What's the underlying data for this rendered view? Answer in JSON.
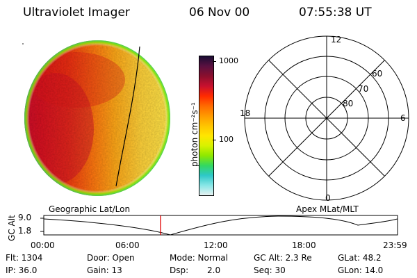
{
  "header": {
    "instrument": "Ultraviolet Imager",
    "date": "06 Nov 00",
    "time": "07:55:38 UT"
  },
  "colorbar": {
    "unit_label": "photon cm⁻²s⁻¹",
    "scale": "log",
    "tick_labels": [
      "1000",
      "100"
    ],
    "colors": [
      "#1a0d33",
      "#5a1040",
      "#8b0f2d",
      "#c8102e",
      "#ff2a00",
      "#ff6a00",
      "#ff9a00",
      "#ffc400",
      "#ffe600",
      "#d8f200",
      "#8ee800",
      "#33d860",
      "#2ec8c8",
      "#88e6e6",
      "#e8f2f2"
    ]
  },
  "polar_grid": {
    "mlt_labels": {
      "top": "12",
      "right": "6",
      "bottom": "0",
      "left": "18"
    },
    "lat_labels": [
      "60",
      "70",
      "80"
    ]
  },
  "timeline": {
    "left_title": "Geographic Lat/Lon",
    "right_title": "Apex MLat/MLT",
    "y_label": "GC Alt",
    "y_ticks": [
      "9.0",
      "1.8"
    ],
    "x_ticks": [
      "00:00",
      "06:00",
      "12:00",
      "18:00",
      "23:59"
    ],
    "current_time_fraction": 0.33,
    "marker_color": "#e00000"
  },
  "info": {
    "flt": "Flt: 1304",
    "ip": "IP: 36.0",
    "door": "Door: Open",
    "gain": "Gain: 13",
    "mode": "Mode: Normal",
    "dsp_label": "Dsp:",
    "dsp_value": "2.0",
    "gcalt": "GC Alt: 2.3 Re",
    "seq": "Seq: 30",
    "glat": "GLat: 48.2",
    "glon": "GLon: 14.0"
  }
}
